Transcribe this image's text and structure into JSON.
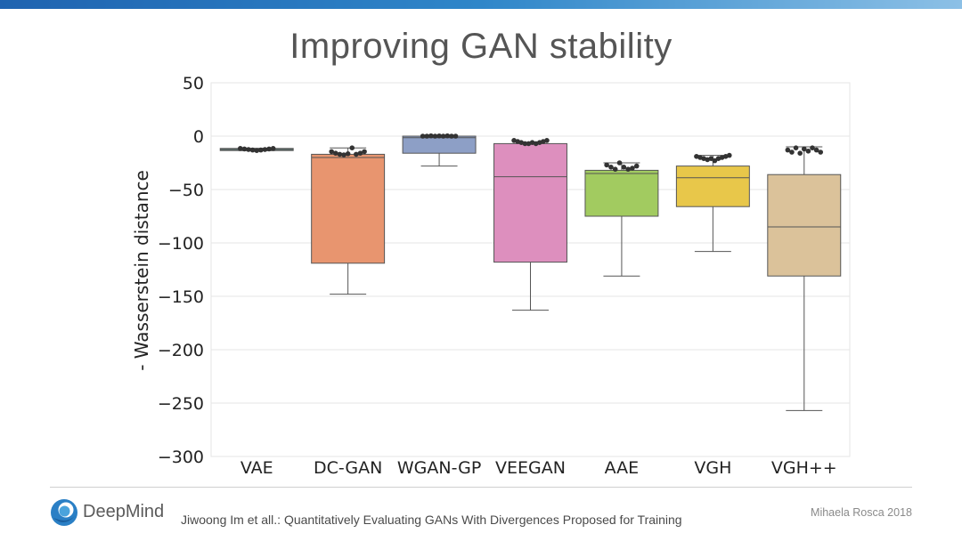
{
  "slide": {
    "title": "Improving GAN stability",
    "brand": "DeepMind",
    "citation": "Jiwoong Im et all.: Quantitatively Evaluating GANs With Divergences Proposed for Training",
    "author": "Mihaela Rosca 2018"
  },
  "chart_data": {
    "type": "box",
    "title": "",
    "xlabel": "",
    "ylabel": "- Wasserstein distance",
    "ylim": [
      -300,
      50
    ],
    "yticks": [
      50,
      0,
      -50,
      -100,
      -150,
      -200,
      -250,
      -300
    ],
    "ytick_labels": [
      "50",
      "0",
      "−50",
      "−100",
      "−150",
      "−200",
      "−250",
      "−300"
    ],
    "grid": true,
    "categories": [
      "VAE",
      "DC-GAN",
      "WGAN-GP",
      "VEEGAN",
      "AAE",
      "VGH",
      "VGH++"
    ],
    "colors": [
      "#5f9a8a",
      "#e8956f",
      "#8d9fc6",
      "#dd8fbe",
      "#a2cb60",
      "#e8c74a",
      "#dbc29a"
    ],
    "boxes": [
      {
        "name": "VAE",
        "whislo": -13.5,
        "q1": -13.5,
        "med": -12.5,
        "q3": -11.5,
        "whishi": -11.5,
        "points": [
          -11.5,
          -12,
          -12.5,
          -13,
          -13.5,
          -13,
          -12.5,
          -12,
          -11.5
        ]
      },
      {
        "name": "DC-GAN",
        "whislo": -148,
        "q1": -119,
        "med": -20,
        "q3": -17,
        "whishi": -11,
        "points": [
          -14.5,
          -16,
          -17,
          -17.5,
          -16.5,
          -11,
          -17,
          -16,
          -14.5
        ]
      },
      {
        "name": "WGAN-GP",
        "whislo": -28,
        "q1": -16,
        "med": -1.5,
        "q3": 0,
        "whishi": 0,
        "points": [
          0,
          0,
          0.3,
          0,
          0.2,
          0,
          0.3,
          0,
          0
        ]
      },
      {
        "name": "VEEGAN",
        "whislo": -163,
        "q1": -118,
        "med": -38,
        "q3": -7,
        "whishi": -7,
        "points": [
          -4,
          -5,
          -6,
          -7,
          -7,
          -6,
          -7,
          -6,
          -5,
          -4
        ]
      },
      {
        "name": "AAE",
        "whislo": -131,
        "q1": -75,
        "med": -35,
        "q3": -32,
        "whishi": -25,
        "points": [
          -27,
          -29,
          -31,
          -25,
          -29,
          -31,
          -30,
          -28
        ]
      },
      {
        "name": "VGH",
        "whislo": -108,
        "q1": -66,
        "med": -39,
        "q3": -28,
        "whishi": -18,
        "points": [
          -19,
          -20,
          -21,
          -22,
          -21,
          -23,
          -21,
          -20,
          -19,
          -18
        ]
      },
      {
        "name": "VGH++",
        "whislo": -257,
        "q1": -131,
        "med": -85,
        "q3": -36,
        "whishi": -10,
        "points": [
          -13,
          -15,
          -11,
          -16,
          -12,
          -14,
          -11,
          -13,
          -15
        ]
      }
    ]
  }
}
